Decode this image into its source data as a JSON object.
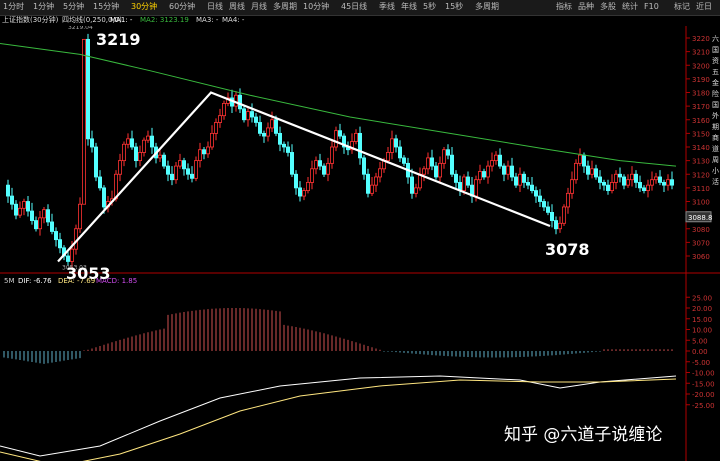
{
  "toolbar": {
    "periods": [
      "1分时",
      "1分钟",
      "5分钟",
      "15分钟",
      "30分钟",
      "60分钟",
      "日线",
      "周线",
      "月线",
      "多周期",
      "10分钟",
      "45日线",
      "季线",
      "年线",
      "5秒",
      "15秒",
      "多周期"
    ],
    "active_period_index": 4,
    "right_buttons": [
      "指标",
      "品种",
      "多股",
      "统计",
      "F10",
      "标记",
      "近日"
    ]
  },
  "info": {
    "instrument": "上证指数(30分钟)",
    "indicator": "四均线(0,250,0,0)",
    "ma1": "MA1: -",
    "ma2": "MA2: 3123.19",
    "ma3": "MA3: -",
    "ma4": "MA4: -",
    "peak_label": "3219.04",
    "low_label": "3053.03"
  },
  "macd_info": {
    "period": "5M",
    "dif": "DIF: -6.76",
    "dea": "DEA: -7.69",
    "macd": "MACD: 1.85"
  },
  "annotations": {
    "high": "3219",
    "low1": "3053",
    "low2": "3078"
  },
  "price_axis": [
    "3220",
    "3210",
    "3200",
    "3190",
    "3180",
    "3170",
    "3160",
    "3150",
    "3140",
    "3130",
    "3120",
    "3110",
    "3100",
    "3090",
    "3080",
    "3070",
    "3060"
  ],
  "current_price": "3088.8",
  "macd_axis": [
    "25.00",
    "20.00",
    "15.00",
    "10.00",
    "5.00",
    "0.00",
    "-5.00",
    "-10.00",
    "-15.00",
    "-20.00",
    "-25.00"
  ],
  "right_strip": [
    "六",
    "国",
    "资",
    "五",
    "金",
    "险",
    "国",
    "外",
    "期",
    "商",
    "道",
    "周",
    "小",
    "活"
  ],
  "watermark": "知乎 @六道子说缠论",
  "colors": {
    "up": "#ff3232",
    "down": "#54ffff",
    "ma2": "#39b93e",
    "dif": "#ffffff",
    "dea": "#ffe680",
    "macd_pos": "#d05050",
    "macd_neg": "#5fb0c8",
    "axis": "#b00000"
  }
}
